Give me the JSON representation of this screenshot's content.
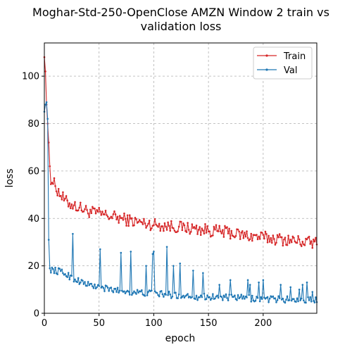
{
  "chart_data": {
    "type": "line",
    "title_lines": [
      "Moghar-Std-250-OpenClose AMZN Window 2 train vs",
      "validation loss"
    ],
    "xlabel": "epoch",
    "ylabel": "loss",
    "xlim": [
      0,
      249
    ],
    "ylim": [
      0,
      114
    ],
    "x_ticks": [
      0,
      50,
      100,
      150,
      200
    ],
    "y_ticks": [
      0,
      20,
      40,
      60,
      80,
      100
    ],
    "grid": true,
    "legend_position": "top-right",
    "series": [
      {
        "name": "Train",
        "color": "#d62728",
        "anchors": [
          [
            0,
            108
          ],
          [
            1,
            102
          ],
          [
            2,
            88
          ],
          [
            3,
            80
          ],
          [
            4,
            72
          ],
          [
            5,
            62
          ],
          [
            6,
            57
          ],
          [
            8,
            55
          ],
          [
            10,
            54
          ],
          [
            12,
            52
          ],
          [
            15,
            50
          ],
          [
            18,
            48
          ],
          [
            20,
            47
          ],
          [
            25,
            46
          ],
          [
            30,
            45
          ],
          [
            35,
            44
          ],
          [
            40,
            43
          ],
          [
            45,
            42.5
          ],
          [
            50,
            42
          ],
          [
            55,
            41.5
          ],
          [
            60,
            41
          ],
          [
            65,
            40.5
          ],
          [
            70,
            40
          ],
          [
            75,
            39.5
          ],
          [
            80,
            39
          ],
          [
            90,
            38
          ],
          [
            100,
            37.5
          ],
          [
            110,
            37
          ],
          [
            120,
            36.5
          ],
          [
            130,
            36
          ],
          [
            140,
            35.5
          ],
          [
            150,
            35
          ],
          [
            160,
            34.5
          ],
          [
            170,
            34
          ],
          [
            180,
            33
          ],
          [
            190,
            32.5
          ],
          [
            200,
            32
          ],
          [
            210,
            31.5
          ],
          [
            220,
            31
          ],
          [
            230,
            30.5
          ],
          [
            240,
            30
          ],
          [
            249,
            29.5
          ]
        ],
        "noise": 2.6
      },
      {
        "name": "Val",
        "color": "#1f77b4",
        "anchors": [
          [
            0,
            85
          ],
          [
            1,
            88
          ],
          [
            2,
            89
          ],
          [
            3,
            82
          ],
          [
            4,
            31
          ],
          [
            5,
            19
          ],
          [
            6,
            18.5
          ],
          [
            10,
            18
          ],
          [
            15,
            17.5
          ],
          [
            20,
            16.5
          ],
          [
            25,
            15
          ],
          [
            30,
            14
          ],
          [
            35,
            13
          ],
          [
            40,
            12
          ],
          [
            45,
            11.5
          ],
          [
            50,
            11
          ],
          [
            55,
            10.5
          ],
          [
            60,
            10
          ],
          [
            70,
            9.5
          ],
          [
            80,
            9
          ],
          [
            90,
            8.5
          ],
          [
            100,
            8.5
          ],
          [
            110,
            8
          ],
          [
            120,
            7.5
          ],
          [
            130,
            7.5
          ],
          [
            140,
            7
          ],
          [
            150,
            7
          ],
          [
            160,
            6.8
          ],
          [
            170,
            6.5
          ],
          [
            180,
            6.5
          ],
          [
            190,
            6.3
          ],
          [
            200,
            6
          ],
          [
            210,
            6
          ],
          [
            220,
            5.8
          ],
          [
            230,
            5.8
          ],
          [
            240,
            5.6
          ],
          [
            249,
            5.5
          ]
        ],
        "noise": 1.4,
        "spikes": [
          [
            26,
            33.5
          ],
          [
            51,
            27
          ],
          [
            70,
            25.5
          ],
          [
            79,
            26
          ],
          [
            93,
            20
          ],
          [
            99,
            25
          ],
          [
            100,
            26
          ],
          [
            112,
            28
          ],
          [
            118,
            20
          ],
          [
            124,
            21
          ],
          [
            136,
            18
          ],
          [
            145,
            17
          ],
          [
            160,
            12
          ],
          [
            170,
            14
          ],
          [
            186,
            14
          ],
          [
            188,
            12
          ],
          [
            196,
            13
          ],
          [
            200,
            14
          ],
          [
            216,
            12
          ],
          [
            225,
            11
          ],
          [
            233,
            10
          ],
          [
            236,
            12
          ],
          [
            240,
            13
          ],
          [
            245,
            9
          ]
        ]
      }
    ]
  }
}
